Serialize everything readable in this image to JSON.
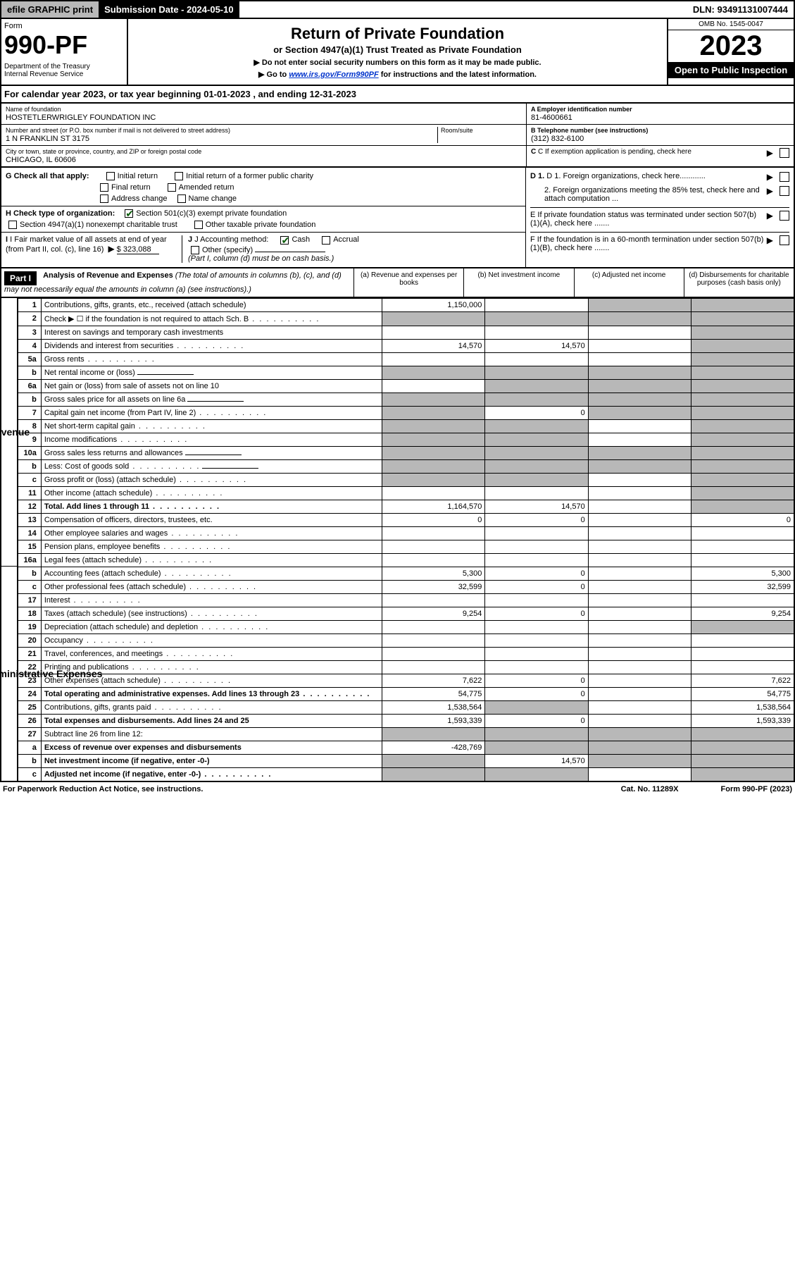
{
  "topbar": {
    "efile": "efile GRAPHIC print",
    "submission": "Submission Date - 2024-05-10",
    "dln": "DLN: 93491131007444"
  },
  "header": {
    "form_label": "Form",
    "form_num": "990-PF",
    "dept": "Department of the Treasury\nInternal Revenue Service",
    "title": "Return of Private Foundation",
    "subtitle": "or Section 4947(a)(1) Trust Treated as Private Foundation",
    "note1": "▶ Do not enter social security numbers on this form as it may be made public.",
    "note2_pre": "▶ Go to ",
    "note2_link": "www.irs.gov/Form990PF",
    "note2_post": " for instructions and the latest information.",
    "omb": "OMB No. 1545-0047",
    "year": "2023",
    "open": "Open to Public Inspection"
  },
  "calyear": "For calendar year 2023, or tax year beginning 01-01-2023                              , and ending 12-31-2023",
  "info": {
    "name_lbl": "Name of foundation",
    "name": "HOSTETLERWRIGLEY FOUNDATION INC",
    "addr_lbl": "Number and street (or P.O. box number if mail is not delivered to street address)",
    "addr": "1 N FRANKLIN ST 3175",
    "room_lbl": "Room/suite",
    "city_lbl": "City or town, state or province, country, and ZIP or foreign postal code",
    "city": "CHICAGO, IL  60606",
    "ein_lbl": "A Employer identification number",
    "ein": "81-4600661",
    "tel_lbl": "B Telephone number (see instructions)",
    "tel": "(312) 832-6100",
    "c_lbl": "C If exemption application is pending, check here"
  },
  "checks": {
    "g_lbl": "G Check all that apply:",
    "g_opts": [
      "Initial return",
      "Initial return of a former public charity",
      "Final return",
      "Amended return",
      "Address change",
      "Name change"
    ],
    "h_lbl": "H Check type of organization:",
    "h_opt1": "Section 501(c)(3) exempt private foundation",
    "h_opt2": "Section 4947(a)(1) nonexempt charitable trust",
    "h_opt3": "Other taxable private foundation",
    "i_lbl": "I Fair market value of all assets at end of year (from Part II, col. (c), line 16)",
    "i_val": "$  323,088",
    "j_lbl": "J Accounting method:",
    "j_cash": "Cash",
    "j_accrual": "Accrual",
    "j_other": "Other (specify)",
    "j_note": "(Part I, column (d) must be on cash basis.)",
    "d1": "D 1. Foreign organizations, check here............",
    "d2": "2. Foreign organizations meeting the 85% test, check here and attach computation ...",
    "e": "E  If private foundation status was terminated under section 507(b)(1)(A), check here .......",
    "f": "F  If the foundation is in a 60-month termination under section 507(b)(1)(B), check here .......",
    "arrow": "▶"
  },
  "part1": {
    "label": "Part I",
    "title": "Analysis of Revenue and Expenses",
    "note": " (The total of amounts in columns (b), (c), and (d) may not necessarily equal the amounts in column (a) (see instructions).)",
    "col_a": "(a)   Revenue and expenses per books",
    "col_b": "(b)   Net investment income",
    "col_c": "(c)   Adjusted net income",
    "col_d": "(d)   Disbursements for charitable purposes (cash basis only)"
  },
  "side": {
    "revenue": "Revenue",
    "admin": "Operating and Administrative Expenses"
  },
  "rows": [
    {
      "n": "1",
      "d": "Contributions, gifts, grants, etc., received (attach schedule)",
      "a": "1,150,000",
      "b": "",
      "c": "g",
      "dd": "g"
    },
    {
      "n": "2",
      "d": "Check ▶ ☐ if the foundation is not required to attach Sch. B",
      "a": "g",
      "b": "g",
      "c": "g",
      "dd": "g",
      "dots": 1
    },
    {
      "n": "3",
      "d": "Interest on savings and temporary cash investments",
      "a": "",
      "b": "",
      "c": "",
      "dd": "g"
    },
    {
      "n": "4",
      "d": "Dividends and interest from securities",
      "a": "14,570",
      "b": "14,570",
      "c": "",
      "dd": "g",
      "dots": 1
    },
    {
      "n": "5a",
      "d": "Gross rents",
      "a": "",
      "b": "",
      "c": "",
      "dd": "g",
      "dots": 1
    },
    {
      "n": "b",
      "d": "Net rental income or (loss)",
      "a": "g",
      "b": "g",
      "c": "g",
      "dd": "g",
      "uline": 1
    },
    {
      "n": "6a",
      "d": "Net gain or (loss) from sale of assets not on line 10",
      "a": "",
      "b": "g",
      "c": "g",
      "dd": "g"
    },
    {
      "n": "b",
      "d": "Gross sales price for all assets on line 6a",
      "a": "g",
      "b": "g",
      "c": "g",
      "dd": "g",
      "uline": 1
    },
    {
      "n": "7",
      "d": "Capital gain net income (from Part IV, line 2)",
      "a": "g",
      "b": "0",
      "c": "g",
      "dd": "g",
      "dots": 1
    },
    {
      "n": "8",
      "d": "Net short-term capital gain",
      "a": "g",
      "b": "g",
      "c": "",
      "dd": "g",
      "dots": 1
    },
    {
      "n": "9",
      "d": "Income modifications",
      "a": "g",
      "b": "g",
      "c": "",
      "dd": "g",
      "dots": 1
    },
    {
      "n": "10a",
      "d": "Gross sales less returns and allowances",
      "a": "g",
      "b": "g",
      "c": "g",
      "dd": "g",
      "uline": 1
    },
    {
      "n": "b",
      "d": "Less: Cost of goods sold",
      "a": "g",
      "b": "g",
      "c": "g",
      "dd": "g",
      "dots": 1,
      "uline": 1
    },
    {
      "n": "c",
      "d": "Gross profit or (loss) (attach schedule)",
      "a": "g",
      "b": "g",
      "c": "",
      "dd": "g",
      "dots": 1
    },
    {
      "n": "11",
      "d": "Other income (attach schedule)",
      "a": "",
      "b": "",
      "c": "",
      "dd": "g",
      "dots": 1
    },
    {
      "n": "12",
      "d": "Total. Add lines 1 through 11",
      "a": "1,164,570",
      "b": "14,570",
      "c": "",
      "dd": "g",
      "bold": 1,
      "dots": 1
    },
    {
      "n": "13",
      "d": "Compensation of officers, directors, trustees, etc.",
      "a": "0",
      "b": "0",
      "c": "",
      "dd": "0"
    },
    {
      "n": "14",
      "d": "Other employee salaries and wages",
      "a": "",
      "b": "",
      "c": "",
      "dd": "",
      "dots": 1
    },
    {
      "n": "15",
      "d": "Pension plans, employee benefits",
      "a": "",
      "b": "",
      "c": "",
      "dd": "",
      "dots": 1
    },
    {
      "n": "16a",
      "d": "Legal fees (attach schedule)",
      "a": "",
      "b": "",
      "c": "",
      "dd": "",
      "dots": 1
    },
    {
      "n": "b",
      "d": "Accounting fees (attach schedule)",
      "a": "5,300",
      "b": "0",
      "c": "",
      "dd": "5,300",
      "dots": 1
    },
    {
      "n": "c",
      "d": "Other professional fees (attach schedule)",
      "a": "32,599",
      "b": "0",
      "c": "",
      "dd": "32,599",
      "dots": 1
    },
    {
      "n": "17",
      "d": "Interest",
      "a": "",
      "b": "",
      "c": "",
      "dd": "",
      "dots": 1
    },
    {
      "n": "18",
      "d": "Taxes (attach schedule) (see instructions)",
      "a": "9,254",
      "b": "0",
      "c": "",
      "dd": "9,254",
      "dots": 1
    },
    {
      "n": "19",
      "d": "Depreciation (attach schedule) and depletion",
      "a": "",
      "b": "",
      "c": "",
      "dd": "g",
      "dots": 1
    },
    {
      "n": "20",
      "d": "Occupancy",
      "a": "",
      "b": "",
      "c": "",
      "dd": "",
      "dots": 1
    },
    {
      "n": "21",
      "d": "Travel, conferences, and meetings",
      "a": "",
      "b": "",
      "c": "",
      "dd": "",
      "dots": 1
    },
    {
      "n": "22",
      "d": "Printing and publications",
      "a": "",
      "b": "",
      "c": "",
      "dd": "",
      "dots": 1
    },
    {
      "n": "23",
      "d": "Other expenses (attach schedule)",
      "a": "7,622",
      "b": "0",
      "c": "",
      "dd": "7,622",
      "dots": 1
    },
    {
      "n": "24",
      "d": "Total operating and administrative expenses. Add lines 13 through 23",
      "a": "54,775",
      "b": "0",
      "c": "",
      "dd": "54,775",
      "bold": 1,
      "dots": 1
    },
    {
      "n": "25",
      "d": "Contributions, gifts, grants paid",
      "a": "1,538,564",
      "b": "g",
      "c": "",
      "dd": "1,538,564",
      "dots": 1
    },
    {
      "n": "26",
      "d": "Total expenses and disbursements. Add lines 24 and 25",
      "a": "1,593,339",
      "b": "0",
      "c": "",
      "dd": "1,593,339",
      "bold": 1
    },
    {
      "n": "27",
      "d": "Subtract line 26 from line 12:",
      "a": "g",
      "b": "g",
      "c": "g",
      "dd": "g"
    },
    {
      "n": "a",
      "d": "Excess of revenue over expenses and disbursements",
      "a": "-428,769",
      "b": "g",
      "c": "g",
      "dd": "g",
      "bold": 1
    },
    {
      "n": "b",
      "d": "Net investment income (if negative, enter -0-)",
      "a": "g",
      "b": "14,570",
      "c": "g",
      "dd": "g",
      "bold": 1
    },
    {
      "n": "c",
      "d": "Adjusted net income (if negative, enter -0-)",
      "a": "g",
      "b": "g",
      "c": "",
      "dd": "g",
      "bold": 1,
      "dots": 1
    }
  ],
  "footer": {
    "left": "For Paperwork Reduction Act Notice, see instructions.",
    "mid": "Cat. No. 11289X",
    "right": "Form 990-PF (2023)"
  }
}
